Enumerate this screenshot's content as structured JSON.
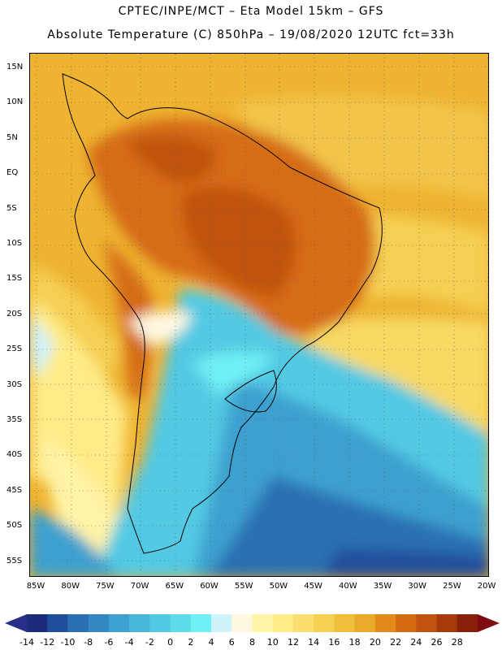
{
  "title_line1": "CPTEC/INPE/MCT –  Eta Model 15km – GFS",
  "title_line2": "Absolute Temperature (C) 850hPa – 19/08/2020 12UTC fct=33h",
  "lat_labels": [
    "15N",
    "10N",
    "5N",
    "EQ",
    "5S",
    "10S",
    "15S",
    "20S",
    "25S",
    "30S",
    "35S",
    "40S",
    "45S",
    "50S",
    "55S"
  ],
  "lon_labels": [
    "85W",
    "80W",
    "75W",
    "70W",
    "65W",
    "60W",
    "55W",
    "50W",
    "45W",
    "40W",
    "35W",
    "30W",
    "25W",
    "20W"
  ],
  "colorbar": {
    "labels": [
      "-14",
      "-12",
      "-10",
      "-8",
      "-6",
      "-4",
      "-2",
      "0",
      "2",
      "4",
      "6",
      "8",
      "10",
      "12",
      "14",
      "16",
      "18",
      "20",
      "22",
      "24",
      "26",
      "28"
    ],
    "colors": [
      "#1c2c7a",
      "#214e9c",
      "#2a6fb2",
      "#3488c2",
      "#3ea0cf",
      "#48b6da",
      "#52c9e3",
      "#5fdcec",
      "#70f0f4",
      "#cff3fb",
      "#fff8e0",
      "#fff3a6",
      "#feea86",
      "#fbde6f",
      "#f5cf52",
      "#f0bf3a",
      "#eba92a",
      "#e48a1d",
      "#d56c14",
      "#c0530f",
      "#a63a0b",
      "#8a1f0a"
    ],
    "under_color": "#26308a",
    "over_color": "#7e0d12"
  }
}
